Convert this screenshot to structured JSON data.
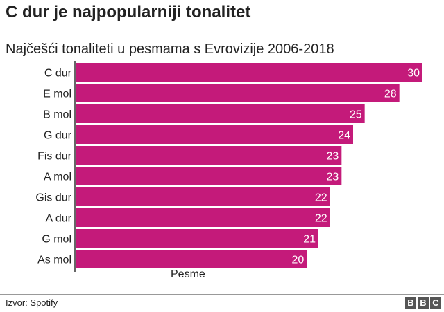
{
  "header": {
    "title": "C dur je najpopularniji tonalitet"
  },
  "chart_data": {
    "type": "bar",
    "orientation": "horizontal",
    "title": "Najčešći tonaliteti u pesmama s Evrovizije 2006-2018",
    "categories": [
      "C dur",
      "E mol",
      "B mol",
      "G dur",
      "Fis dur",
      "A mol",
      "Gis dur",
      "A dur",
      "G mol",
      "As mol"
    ],
    "values": [
      30,
      28,
      25,
      24,
      23,
      23,
      22,
      22,
      21,
      20
    ],
    "xlabel": "Pesme",
    "ylabel": "",
    "xlim": [
      0,
      30
    ],
    "grid": false,
    "bar_color": "#c41a7a"
  },
  "footer": {
    "source": "Izvor: Spotify",
    "logo": [
      "B",
      "B",
      "C"
    ]
  }
}
